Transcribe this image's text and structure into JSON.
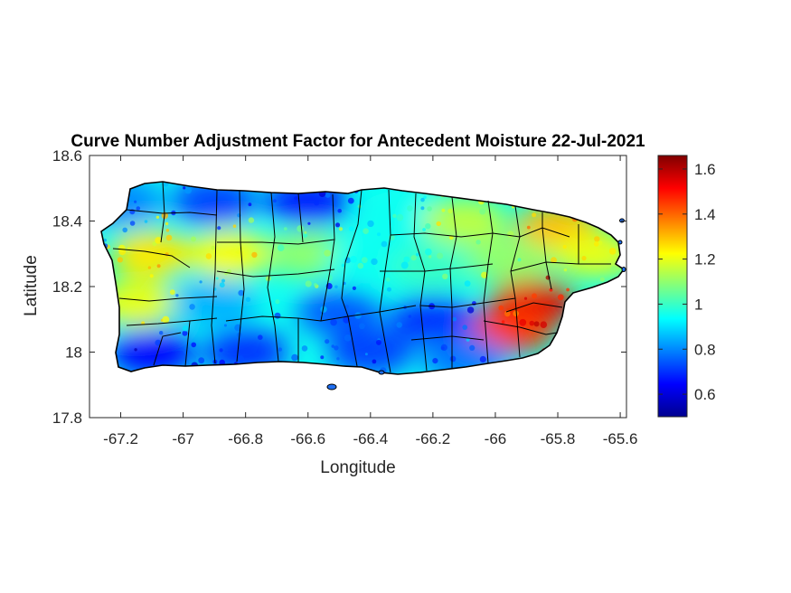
{
  "chart_data": {
    "type": "heatmap",
    "title": "Curve Number Adjustment Factor for Antecedent Moisture 22-Jul-2021",
    "xlabel": "Longitude",
    "ylabel": "Latitude",
    "xlim": [
      -67.3,
      -65.58
    ],
    "ylim": [
      17.8,
      18.6
    ],
    "xticks": [
      -67.2,
      -67,
      -66.8,
      -66.6,
      -66.4,
      -66.2,
      -66,
      -65.8,
      -65.6
    ],
    "xtick_labels": [
      "-67.2",
      "-67",
      "-66.8",
      "-66.6",
      "-66.4",
      "-66.2",
      "-66",
      "-65.8",
      "-65.6"
    ],
    "yticks": [
      17.8,
      18,
      18.2,
      18.4,
      18.6
    ],
    "ytick_labels": [
      "17.8",
      "18",
      "18.2",
      "18.4",
      "18.6"
    ],
    "colormap": "jet",
    "clim": [
      0.5,
      1.66
    ],
    "colorbar_ticks": [
      0.6,
      0.8,
      1,
      1.2,
      1.4,
      1.6
    ],
    "colorbar_tick_labels": [
      "0.6",
      "0.8",
      "1",
      "1.2",
      "1.4",
      "1.6"
    ],
    "region": "Puerto Rico",
    "grid": false,
    "zones": [
      {
        "lon": -66.9,
        "lat": 18.46,
        "value": 0.72
      },
      {
        "lon": -66.6,
        "lat": 18.46,
        "value": 0.68
      },
      {
        "lon": -67.2,
        "lat": 18.46,
        "value": 0.8
      },
      {
        "lon": -66.3,
        "lat": 18.42,
        "value": 0.95
      },
      {
        "lon": -66.1,
        "lat": 18.4,
        "value": 1.15
      },
      {
        "lon": -65.8,
        "lat": 18.38,
        "value": 1.3
      },
      {
        "lon": -65.68,
        "lat": 18.3,
        "value": 1.2
      },
      {
        "lon": -67.1,
        "lat": 18.3,
        "value": 1.25
      },
      {
        "lon": -66.85,
        "lat": 18.3,
        "value": 1.22
      },
      {
        "lon": -66.6,
        "lat": 18.3,
        "value": 1.1
      },
      {
        "lon": -66.4,
        "lat": 18.28,
        "value": 0.95
      },
      {
        "lon": -66.2,
        "lat": 18.26,
        "value": 1.0
      },
      {
        "lon": -65.95,
        "lat": 18.28,
        "value": 1.1
      },
      {
        "lon": -65.88,
        "lat": 18.15,
        "value": 1.55
      },
      {
        "lon": -65.95,
        "lat": 18.07,
        "value": 1.45
      },
      {
        "lon": -67.15,
        "lat": 18.15,
        "value": 1.2
      },
      {
        "lon": -66.9,
        "lat": 18.15,
        "value": 0.85
      },
      {
        "lon": -66.5,
        "lat": 18.12,
        "value": 0.75
      },
      {
        "lon": -66.2,
        "lat": 18.1,
        "value": 0.7
      },
      {
        "lon": -67.1,
        "lat": 18.0,
        "value": 0.65
      },
      {
        "lon": -66.8,
        "lat": 18.0,
        "value": 0.7
      },
      {
        "lon": -66.4,
        "lat": 18.0,
        "value": 0.72
      },
      {
        "lon": -66.1,
        "lat": 17.98,
        "value": 0.78
      }
    ]
  }
}
